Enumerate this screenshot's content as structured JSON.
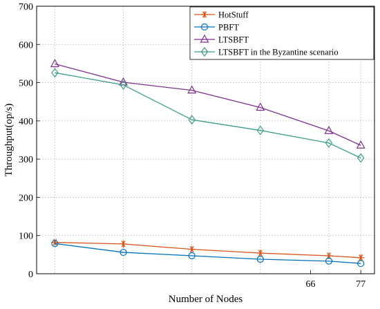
{
  "chart_data": {
    "type": "line",
    "title": "",
    "xlabel": "Number of Nodes",
    "ylabel": "Throughput(op/s)",
    "ylim": [
      0,
      700
    ],
    "yticks": [
      0,
      100,
      200,
      300,
      400,
      500,
      600,
      700
    ],
    "xlim": [
      6,
      80
    ],
    "xticks": [
      66,
      77
    ],
    "x": [
      10,
      25,
      40,
      55,
      70,
      77
    ],
    "grid": true,
    "legend_position": "top-right",
    "series": [
      {
        "name": "HotStuff",
        "color": "#d95319",
        "marker": "asterisk",
        "values": [
          82,
          78,
          64,
          54,
          47,
          42
        ]
      },
      {
        "name": "PBFT",
        "color": "#0072bd",
        "marker": "circle",
        "values": [
          79,
          56,
          47,
          38,
          33,
          27
        ]
      },
      {
        "name": "LTSBFT",
        "color": "#7e2f8e",
        "marker": "triangle",
        "values": [
          549,
          501,
          480,
          435,
          374,
          336
        ]
      },
      {
        "name": "LTSBFT in the Byzantine scenario",
        "color": "#3c9d8a",
        "marker": "diamond",
        "values": [
          526,
          494,
          403,
          375,
          342,
          303
        ]
      }
    ]
  }
}
